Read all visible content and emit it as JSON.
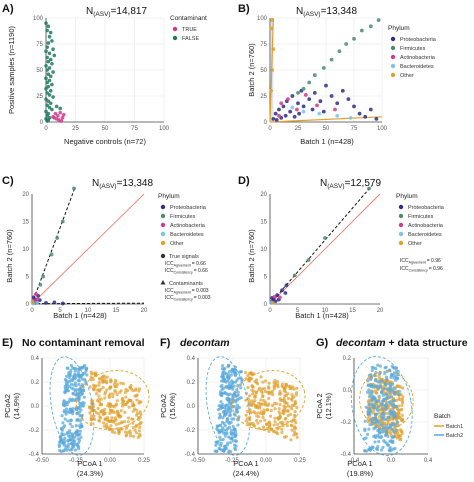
{
  "colors": {
    "proteobacteria": "#2b2d8c",
    "firmicutes": "#4a8c6e",
    "actinobacteria": "#d13a8a",
    "bacteroidetes": "#7ec3e6",
    "other": "#e1a02c",
    "true_contam": "#d13a8a",
    "false_contam": "#1f7a62",
    "ref_line": "#f08070",
    "batch1": "#e1a02c",
    "batch2": "#5ba9dc"
  },
  "chart_data": [
    {
      "id": "A",
      "type": "scatter",
      "panel_label": "A)",
      "title": "N(ASV)=14,817",
      "title_main": "N",
      "title_sub": "(ASV)",
      "title_rest": "=14,817",
      "xlabel": "Negative controls (n=72)",
      "ylabel": "Positive samples (n=1190)",
      "xlim": [
        0,
        100
      ],
      "ylim": [
        0,
        100
      ],
      "xticks": [
        "0",
        "25",
        "50",
        "75",
        "100"
      ],
      "yticks": [
        "0",
        "25",
        "50",
        "75",
        "100"
      ],
      "legend": {
        "title": "Contaminant",
        "items": [
          "TRUE",
          "FALSE"
        ],
        "placement": "right"
      },
      "series": [
        {
          "name": "FALSE",
          "points": [
            [
              0,
              95
            ],
            [
              2,
              92
            ],
            [
              1,
              88
            ],
            [
              4,
              86
            ],
            [
              3,
              82
            ],
            [
              5,
              78
            ],
            [
              2,
              76
            ],
            [
              1,
              72
            ],
            [
              6,
              70
            ],
            [
              0,
              68
            ],
            [
              3,
              66
            ],
            [
              7,
              64
            ],
            [
              1,
              62
            ],
            [
              4,
              60
            ],
            [
              2,
              58
            ],
            [
              5,
              56
            ],
            [
              0,
              54
            ],
            [
              3,
              52
            ],
            [
              1,
              50
            ],
            [
              6,
              48
            ],
            [
              2,
              46
            ],
            [
              4,
              44
            ],
            [
              0,
              42
            ],
            [
              3,
              40
            ],
            [
              1,
              38
            ],
            [
              5,
              36
            ],
            [
              2,
              34
            ],
            [
              0,
              32
            ],
            [
              4,
              30
            ],
            [
              1,
              28
            ],
            [
              3,
              26
            ],
            [
              6,
              24
            ],
            [
              0,
              22
            ],
            [
              2,
              20
            ],
            [
              4,
              18
            ],
            [
              1,
              16
            ],
            [
              3,
              14
            ],
            [
              5,
              12
            ],
            [
              0,
              10
            ],
            [
              2,
              8
            ],
            [
              1,
              6
            ],
            [
              3,
              4
            ],
            [
              0,
              3
            ],
            [
              2,
              2
            ],
            [
              1,
              1
            ],
            [
              9,
              15
            ],
            [
              12,
              13
            ]
          ]
        },
        {
          "name": "TRUE",
          "points": [
            [
              8,
              8
            ],
            [
              10,
              6
            ],
            [
              12,
              9
            ],
            [
              6,
              5
            ],
            [
              15,
              7
            ],
            [
              9,
              3
            ],
            [
              11,
              2
            ],
            [
              7,
              4
            ],
            [
              14,
              4
            ],
            [
              13,
              1
            ]
          ]
        }
      ]
    },
    {
      "id": "B",
      "type": "scatter",
      "panel_label": "B)",
      "title_main": "N",
      "title_sub": "(ASV)",
      "title_rest": "=13,348",
      "xlabel": "Batch 1 (n=428)",
      "ylabel": "Batch 2 (n=760)",
      "xlim": [
        0,
        100
      ],
      "ylim": [
        0,
        100
      ],
      "xticks": [
        "0",
        "25",
        "50",
        "75",
        "100"
      ],
      "yticks": [
        "0",
        "25",
        "50",
        "75",
        "100"
      ],
      "legend": {
        "title": "Phylum",
        "items": [
          "Proteobacteria",
          "Firmicutes",
          "Actinobacteria",
          "Bacteroidetes",
          "Other"
        ],
        "placement": "right"
      },
      "series": [
        {
          "name": "Proteobacteria",
          "points": [
            [
              5,
              8
            ],
            [
              8,
              12
            ],
            [
              12,
              15
            ],
            [
              15,
              20
            ],
            [
              18,
              10
            ],
            [
              20,
              25
            ],
            [
              25,
              18
            ],
            [
              28,
              30
            ],
            [
              30,
              15
            ],
            [
              35,
              22
            ],
            [
              38,
              12
            ],
            [
              40,
              28
            ],
            [
              45,
              20
            ],
            [
              48,
              10
            ],
            [
              50,
              35
            ],
            [
              55,
              25
            ],
            [
              60,
              18
            ],
            [
              65,
              30
            ],
            [
              70,
              22
            ],
            [
              75,
              15
            ],
            [
              80,
              8
            ],
            [
              85,
              5
            ],
            [
              90,
              12
            ],
            [
              95,
              3
            ],
            [
              3,
              3
            ],
            [
              6,
              2
            ],
            [
              10,
              4
            ],
            [
              14,
              6
            ],
            [
              22,
              5
            ],
            [
              26,
              8
            ]
          ]
        },
        {
          "name": "Firmicutes",
          "points": [
            [
              55,
              60
            ],
            [
              62,
              68
            ],
            [
              68,
              75
            ],
            [
              75,
              80
            ],
            [
              82,
              88
            ],
            [
              90,
              92
            ],
            [
              97,
              98
            ],
            [
              48,
              52
            ],
            [
              40,
              45
            ],
            [
              35,
              38
            ],
            [
              30,
              32
            ],
            [
              25,
              28
            ]
          ]
        },
        {
          "name": "Actinobacteria",
          "points": [
            [
              10,
              18
            ],
            [
              16,
              22
            ],
            [
              24,
              12
            ],
            [
              32,
              26
            ],
            [
              42,
              16
            ],
            [
              58,
              12
            ],
            [
              8,
              6
            ]
          ]
        },
        {
          "name": "Bacteroidetes",
          "points": [
            [
              20,
              14
            ],
            [
              30,
              10
            ],
            [
              44,
              8
            ],
            [
              60,
              6
            ],
            [
              72,
              4
            ]
          ]
        },
        {
          "name": "Other",
          "points": [
            [
              2,
              98
            ],
            [
              1,
              90
            ],
            [
              3,
              70
            ],
            [
              2,
              50
            ],
            [
              1,
              30
            ]
          ]
        }
      ]
    },
    {
      "id": "C",
      "type": "scatter",
      "panel_label": "C)",
      "title_main": "N",
      "title_sub": "(ASV)",
      "title_rest": "=13,348",
      "xlabel": "Batch 1 (n=428)",
      "ylabel": "Batch 2 (n=760)",
      "xlim": [
        0,
        20
      ],
      "ylim": [
        0,
        20
      ],
      "xticks": [
        "0",
        "5",
        "10",
        "15",
        "20"
      ],
      "yticks": [
        "0",
        "5",
        "10",
        "15",
        "20"
      ],
      "legend": {
        "title": "Phylum",
        "items": [
          "Proteobacteria",
          "Firmicutes",
          "Actinobacteria",
          "Bacteroidetes",
          "Other"
        ],
        "placement": "right"
      },
      "legend_shapes": {
        "true_signals": "True signals",
        "contaminants": "Contaminants"
      },
      "icc": {
        "true_agreement": "= 0.66",
        "true_consistency": "= 0.66",
        "contam_agreement": "= 0.003",
        "contam_consistency": "= 0.003"
      },
      "series": [
        {
          "name": "Proteobacteria",
          "points": [
            [
              0.2,
              0.3
            ],
            [
              0.5,
              0.8
            ],
            [
              0.8,
              0.4
            ],
            [
              1.1,
              1.5
            ],
            [
              0.3,
              1.2
            ],
            [
              1.4,
              0.7
            ],
            [
              0.6,
              0.2
            ],
            [
              2.5,
              0.2
            ],
            [
              4,
              0.3
            ],
            [
              5.5,
              0.1
            ]
          ]
        },
        {
          "name": "Firmicutes",
          "points": [
            [
              7.5,
              21
            ],
            [
              5.5,
              15
            ],
            [
              4.5,
              12
            ],
            [
              3.5,
              9
            ],
            [
              2,
              5
            ],
            [
              1.5,
              3.5
            ]
          ]
        },
        {
          "name": "Actinobacteria",
          "points": [
            [
              0.4,
              0.6
            ],
            [
              1.0,
              0.9
            ],
            [
              0.7,
              1.8
            ]
          ]
        },
        {
          "name": "Bacteroidetes",
          "points": [
            [
              0.2,
              0.1
            ],
            [
              0.9,
              0.2
            ]
          ]
        },
        {
          "name": "Other",
          "points": [
            [
              0.1,
              0.4
            ]
          ]
        }
      ]
    },
    {
      "id": "D",
      "type": "scatter",
      "panel_label": "D)",
      "title_main": "N",
      "title_sub": "(ASV)",
      "title_rest": "=12,579",
      "xlabel": "Batch 1 (n=428)",
      "ylabel": "Batch 2 (n=760)",
      "xlim": [
        0,
        20
      ],
      "ylim": [
        0,
        20
      ],
      "xticks": [
        "0",
        "5",
        "10",
        "15",
        "20"
      ],
      "yticks": [
        "0",
        "5",
        "10",
        "15",
        "20"
      ],
      "legend": {
        "title": "Phylum",
        "items": [
          "Proteobacteria",
          "Firmicutes",
          "Actinobacteria",
          "Bacteroidetes",
          "Other"
        ],
        "placement": "right"
      },
      "icc": {
        "agreement": "= 0.96",
        "consistency": "= 0.96"
      },
      "series": [
        {
          "name": "Proteobacteria",
          "points": [
            [
              0.3,
              0.4
            ],
            [
              0.6,
              0.9
            ],
            [
              1.0,
              0.5
            ],
            [
              1.3,
              1.6
            ],
            [
              0.4,
              1.1
            ],
            [
              1.6,
              0.8
            ],
            [
              2.2,
              2.5
            ],
            [
              2.8,
              2.0
            ],
            [
              3.0,
              3.4
            ]
          ]
        },
        {
          "name": "Firmicutes",
          "points": [
            [
              18,
              21
            ],
            [
              10,
              12
            ],
            [
              7,
              8
            ],
            [
              4.5,
              5.2
            ]
          ]
        },
        {
          "name": "Actinobacteria",
          "points": [
            [
              0.8,
              1.3
            ],
            [
              1.8,
              1.2
            ]
          ]
        },
        {
          "name": "Bacteroidetes",
          "points": [
            [
              0.2,
              0.3
            ]
          ]
        },
        {
          "name": "Other",
          "points": [
            [
              0.5,
              0.2
            ]
          ]
        }
      ]
    },
    {
      "id": "E",
      "type": "scatter",
      "panel_label": "E)",
      "panel_title": "No contaminant removal",
      "xlabel": "PCoA 1",
      "xlabel2": "(24.3%)",
      "ylabel": "PCoA2",
      "ylabel2": "(14.9%)",
      "xlim": [
        -0.5,
        0.25
      ],
      "ylim": [
        -0.4,
        0.4
      ],
      "xticks": [
        "-0.50",
        "-0.25",
        "0.00",
        "0.25"
      ],
      "yticks": [
        "-0.4",
        "-0.2",
        "0.0",
        "0.2",
        "0.4"
      ]
    },
    {
      "id": "F",
      "type": "scatter",
      "panel_label": "F)",
      "panel_title": "decontam",
      "xlabel": "PCoA 1",
      "xlabel2": "(24.4%)",
      "ylabel": "PCoA2",
      "ylabel2": "(15.0%)",
      "xlim": [
        -0.5,
        0.25
      ],
      "ylim": [
        -0.4,
        0.4
      ],
      "xticks": [
        "-0.50",
        "-0.25",
        "0.00",
        "0.25"
      ],
      "yticks": [
        "-0.4",
        "-0.2",
        "0.0",
        "0.2",
        "0.4"
      ]
    },
    {
      "id": "G",
      "type": "scatter",
      "panel_label": "G)",
      "panel_title_italic": "decontam",
      "panel_title_rest": " + data structure",
      "xlabel": "PCoA 1",
      "xlabel2": "(19.8%)",
      "ylabel": "PCoA 2",
      "ylabel2": "(12.1%)",
      "xlim": [
        -0.4,
        0.4
      ],
      "ylim": [
        -0.4,
        0.4
      ],
      "xticks": [
        "-0.4",
        "0.0",
        "0.4"
      ],
      "yticks": [
        "-0.4",
        "-0.2",
        "0.0",
        "0.2"
      ],
      "legend": {
        "title": "Batch",
        "items": [
          "Batch1",
          "Batch2"
        ],
        "placement": "right"
      }
    }
  ]
}
